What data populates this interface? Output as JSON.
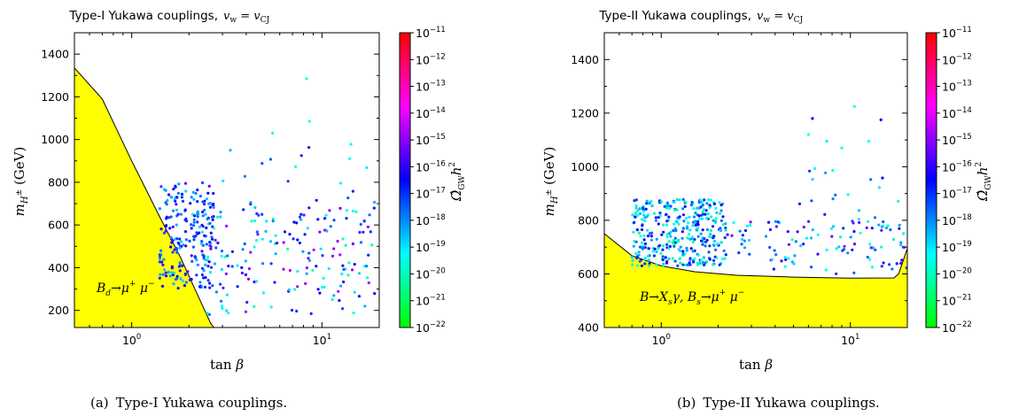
{
  "chart_data": [
    {
      "type": "scatter",
      "panel": "a",
      "title_text": "Type-I Yukawa couplings,",
      "title_condition": "v_w = v_CJ",
      "xlabel": "tan β",
      "ylabel": "m_H± (GeV)",
      "xscale": "log",
      "xlim": [
        0.5,
        20
      ],
      "ylim": [
        120,
        1500
      ],
      "x_tick_labels": [
        "10^0",
        "10^1"
      ],
      "y_ticks": [
        200,
        400,
        600,
        800,
        1000,
        1200,
        1400
      ],
      "excluded_region": {
        "label": "B_d → μ+ μ−",
        "fill_color": "#ffff00",
        "boundary": [
          [
            0.5,
            1335
          ],
          [
            0.7,
            1190
          ],
          [
            1.0,
            900
          ],
          [
            1.4,
            640
          ],
          [
            1.8,
            450
          ],
          [
            2.2,
            280
          ],
          [
            2.6,
            140
          ],
          [
            2.7,
            120
          ]
        ]
      },
      "colorbar": {
        "label": "Ω̂_GW h²",
        "scale": "log",
        "range": [
          1e-22,
          1e-11
        ],
        "tick_labels": [
          "10^-11",
          "10^-12",
          "10^-13",
          "10^-14",
          "10^-15",
          "10^-16",
          "10^-17",
          "10^-18",
          "10^-19",
          "10^-20",
          "10^-21",
          "10^-22"
        ],
        "colormap": [
          "#00ff00",
          "#00ffff",
          "#0000ff",
          "#ff00ff",
          "#ff0000"
        ]
      },
      "point_clusters": [
        {
          "x_range": [
            1.4,
            2.7
          ],
          "y_range": [
            300,
            800
          ],
          "count": 220,
          "log_omega_range": [
            -19,
            -15.5
          ]
        },
        {
          "x_range": [
            2.5,
            20
          ],
          "y_range": [
            180,
            700
          ],
          "count": 170,
          "log_omega_range": [
            -20,
            -14.5
          ]
        },
        {
          "x_range": [
            3,
            20
          ],
          "y_range": [
            600,
            1000
          ],
          "count": 22,
          "log_omega_range": [
            -20,
            -16
          ]
        }
      ],
      "points": [
        [
          8.3,
          1285,
          -19.5
        ],
        [
          8.6,
          1085,
          -19.3
        ],
        [
          5.5,
          1030,
          -19.5
        ],
        [
          3.3,
          950,
          -18.5
        ],
        [
          7.8,
          925,
          -16.0
        ],
        [
          14,
          910,
          -19.5
        ]
      ]
    },
    {
      "type": "scatter",
      "panel": "b",
      "title_text": "Type-II Yukawa couplings,",
      "title_condition": "v_w = v_CJ",
      "xlabel": "tan β",
      "ylabel": "m_H± (GeV)",
      "xscale": "log",
      "xlim": [
        0.5,
        20
      ],
      "ylim": [
        400,
        1500
      ],
      "x_tick_labels": [
        "10^0",
        "10^1"
      ],
      "y_ticks": [
        400,
        600,
        800,
        1000,
        1200,
        1400
      ],
      "excluded_region": {
        "label": "B → X_s γ,  B_s → μ+ μ−",
        "fill_color": "#ffff00",
        "boundary": [
          [
            0.5,
            750
          ],
          [
            0.7,
            668
          ],
          [
            1.0,
            630
          ],
          [
            1.5,
            608
          ],
          [
            2.5,
            595
          ],
          [
            5,
            588
          ],
          [
            10,
            584
          ],
          [
            17,
            585
          ],
          [
            18,
            600
          ],
          [
            20,
            695
          ]
        ]
      },
      "colorbar": {
        "label": "Ω̂_GW h²",
        "scale": "log",
        "range": [
          1e-22,
          1e-11
        ],
        "tick_labels": [
          "10^-11",
          "10^-12",
          "10^-13",
          "10^-14",
          "10^-15",
          "10^-16",
          "10^-17",
          "10^-18",
          "10^-19",
          "10^-20",
          "10^-21",
          "10^-22"
        ],
        "colormap": [
          "#00ff00",
          "#00ffff",
          "#0000ff",
          "#ff00ff",
          "#ff0000"
        ]
      },
      "point_clusters": [
        {
          "x_range": [
            0.7,
            2.2
          ],
          "y_range": [
            630,
            880
          ],
          "count": 360,
          "log_omega_range": [
            -20.5,
            -16
          ]
        },
        {
          "x_range": [
            2.2,
            20
          ],
          "y_range": [
            600,
            800
          ],
          "count": 110,
          "log_omega_range": [
            -20,
            -15
          ]
        },
        {
          "x_range": [
            5,
            20
          ],
          "y_range": [
            800,
            1000
          ],
          "count": 18,
          "log_omega_range": [
            -20,
            -16.5
          ]
        }
      ],
      "points": [
        [
          10.5,
          1225,
          -19.5
        ],
        [
          6.3,
          1180,
          -16.5
        ],
        [
          14.5,
          1175,
          -16.5
        ],
        [
          6,
          1120,
          -19.5
        ],
        [
          12.5,
          1095,
          -19.3
        ],
        [
          7.5,
          1095,
          -19.0
        ],
        [
          9,
          1070,
          -19.5
        ]
      ]
    }
  ],
  "captions": [
    {
      "label": "(a)",
      "text": "Type-I Yukawa couplings."
    },
    {
      "label": "(b)",
      "text": "Type-II Yukawa couplings."
    }
  ]
}
